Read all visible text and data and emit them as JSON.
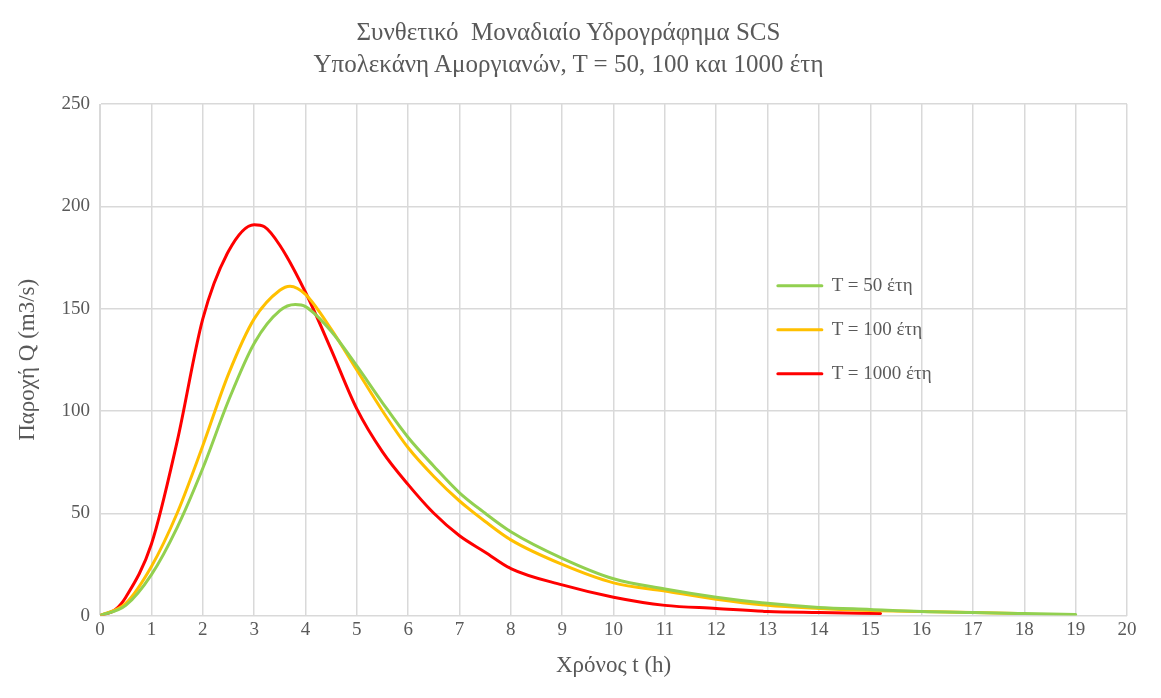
{
  "chart_data": {
    "type": "line",
    "title": "Συνθετικό  Μοναδιαίο Υδρογράφημα SCS",
    "subtitle": "Υπολεκάνη Αμοργιανών, Τ = 50, 100 και 1000 έτη",
    "xlabel": "Χρόνος t (h)",
    "ylabel": "Παροχή Q (m3/s)",
    "xlim": [
      0,
      20
    ],
    "xticks": [
      0,
      1,
      2,
      3,
      4,
      5,
      6,
      7,
      8,
      9,
      10,
      11,
      12,
      13,
      14,
      15,
      16,
      17,
      18,
      19,
      20
    ],
    "ylim": [
      0,
      250
    ],
    "yticks": [
      0,
      50,
      100,
      150,
      200,
      250
    ],
    "grid": true,
    "legend": "right",
    "marker": "none",
    "line_style": "solid",
    "series": [
      {
        "name": "T = 50 έτη",
        "color": "#92d050",
        "x": [
          0,
          0.5,
          1,
          1.5,
          2,
          2.5,
          3,
          3.5,
          3.8,
          4,
          4.5,
          5,
          5.5,
          6,
          6.5,
          7,
          7.5,
          8,
          9,
          10,
          11,
          12,
          13,
          14,
          15,
          16,
          17,
          18,
          19
        ],
        "values": [
          0,
          5,
          20,
          43,
          72,
          105,
          133,
          149,
          152,
          151,
          139,
          122,
          104,
          87,
          73,
          60,
          50,
          41,
          28,
          18,
          13,
          9,
          6,
          4,
          3,
          2,
          1.5,
          1,
          0.5
        ]
      },
      {
        "name": "T = 100 έτη",
        "color": "#ffc000",
        "x": [
          0,
          0.5,
          1,
          1.5,
          2,
          2.5,
          3,
          3.5,
          3.7,
          4,
          4.5,
          5,
          5.5,
          6,
          6.5,
          7,
          7.5,
          8,
          9,
          10,
          11,
          12,
          13,
          14,
          15,
          16,
          17,
          18
        ],
        "values": [
          0,
          6,
          24,
          50,
          83,
          118,
          145,
          159,
          161,
          157,
          140,
          120,
          100,
          82,
          68,
          56,
          46,
          37,
          25,
          16,
          12,
          8,
          5,
          3.5,
          2.5,
          2,
          1.5,
          1
        ]
      },
      {
        "name": "T = 1000 έτη",
        "color": "#ff0000",
        "x": [
          0,
          0.3,
          0.5,
          1,
          1.5,
          2,
          2.5,
          3,
          3.2,
          3.5,
          4,
          4.5,
          5,
          5.5,
          6,
          6.5,
          7,
          7.5,
          8,
          9,
          10,
          11,
          12,
          13,
          14,
          15.2
        ],
        "values": [
          0,
          3,
          9,
          35,
          85,
          145,
          178,
          191,
          190,
          181,
          158,
          130,
          101,
          80,
          64,
          50,
          39,
          31,
          23,
          15,
          9,
          5,
          3.5,
          2,
          1.5,
          1
        ]
      }
    ]
  }
}
